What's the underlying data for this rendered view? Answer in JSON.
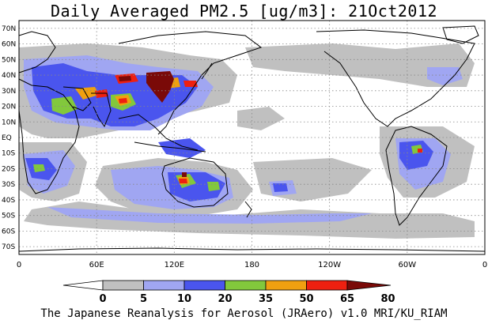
{
  "title": "Daily Averaged PM2.5 [ug/m3]: 21Oct2012",
  "credit": "The Japanese Reanalysis for Aerosol (JRAero) v1.0 MRI/KU_RIAM",
  "map": {
    "projection": "equirectangular, Pacific-centered",
    "lon_range": [
      0,
      360
    ],
    "lat_range": [
      -75,
      75
    ],
    "gridlines": "dotted",
    "lat_labels": [
      "70N",
      "60N",
      "50N",
      "40N",
      "30N",
      "20N",
      "10N",
      "EQ",
      "10S",
      "20S",
      "30S",
      "40S",
      "50S",
      "60S",
      "70S"
    ],
    "lon_labels": [
      "0",
      "60E",
      "120E",
      "180",
      "120W",
      "60W",
      "0"
    ]
  },
  "colorbar": {
    "levels": [
      "0",
      "5",
      "10",
      "20",
      "35",
      "50",
      "65",
      "80"
    ],
    "colors": [
      "#ffffff",
      "#c0c0c0",
      "#a0a6f2",
      "#4a55ee",
      "#82c83c",
      "#f0a010",
      "#ee2010",
      "#7a0a08"
    ]
  }
}
